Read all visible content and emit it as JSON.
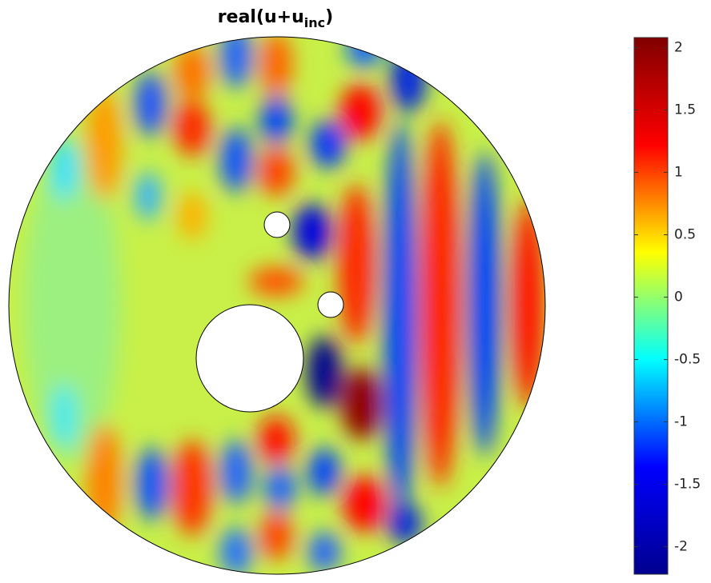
{
  "chart_data": {
    "type": "field",
    "title_parts": [
      "real(u+u",
      "inc",
      ")"
    ],
    "colorbar": {
      "clim": [
        -2.22,
        2.08
      ],
      "ticks": [
        -2,
        {
          "value": -1.5,
          "label": "-1.5"
        },
        -1,
        {
          "value": -0.5,
          "label": "-0.5"
        },
        0,
        0.5,
        1,
        1.5,
        2
      ],
      "colormap": [
        "#00008f",
        "#0000ff",
        "#00ffff",
        "#ffff00",
        "#ff0000",
        "#800000"
      ]
    }
  }
}
